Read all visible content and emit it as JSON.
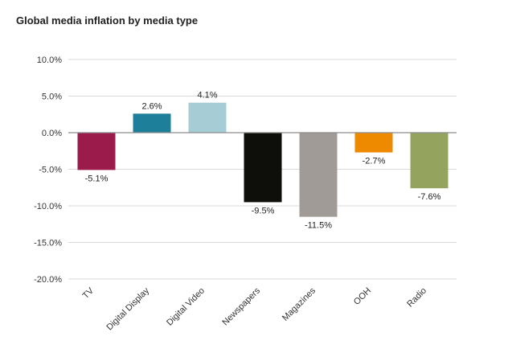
{
  "chart_data": {
    "type": "bar",
    "title": "Global media inflation by media type",
    "categories": [
      "TV",
      "Digital Display",
      "Digital Video",
      "Newspapers",
      "Magazines",
      "OOH",
      "Radio"
    ],
    "values": [
      -5.1,
      2.6,
      4.1,
      -9.5,
      -11.5,
      -2.7,
      -7.6
    ],
    "data_labels": [
      "-5.1%",
      "2.6%",
      "4.1%",
      "-9.5%",
      "-11.5%",
      "-2.7%",
      "-7.6%"
    ],
    "colors": [
      "#9b1c4b",
      "#1d7f9a",
      "#a6ccd6",
      "#0e0e0a",
      "#a09b96",
      "#ee8a00",
      "#94a45f"
    ],
    "ylim": [
      -20,
      10
    ],
    "yticks": [
      10,
      5,
      0,
      -5,
      -10,
      -15,
      -20
    ],
    "ytick_labels": [
      "10.0%",
      "5.0%",
      "0.0%",
      "-5.0%",
      "-10.0%",
      "-15.0%",
      "-20.0%"
    ],
    "xlabel": "",
    "ylabel": "",
    "grid": true,
    "legend": "none"
  }
}
